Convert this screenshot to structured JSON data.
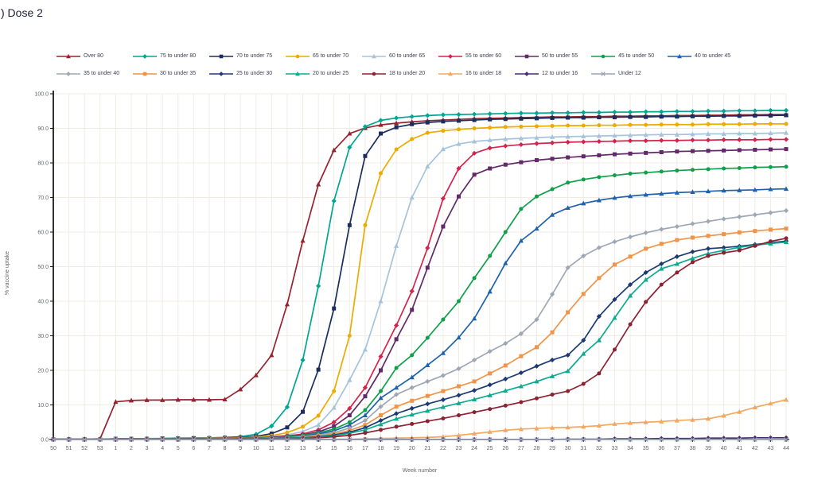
{
  "title": ") Dose 2",
  "chart_data": {
    "type": "line",
    "title": ") Dose 2",
    "xlabel": "Week number",
    "ylabel": "% vaccine uptake",
    "ylim": [
      0,
      100
    ],
    "y_tick_step": 10,
    "y_tick_labels": [
      "0.0",
      "10.0",
      "20.0",
      "30.0",
      "40.0",
      "50.0",
      "60.0",
      "70.0",
      "80.0",
      "90.0",
      "100.0"
    ],
    "grid": true,
    "legend_position": "top",
    "x_labels": [
      "50",
      "51",
      "52",
      "53",
      "1",
      "2",
      "3",
      "4",
      "5",
      "6",
      "7",
      "8",
      "9",
      "10",
      "11",
      "12",
      "13",
      "14",
      "15",
      "16",
      "17",
      "18",
      "19",
      "20",
      "21",
      "22",
      "23",
      "24",
      "25",
      "26",
      "27",
      "28",
      "29",
      "30",
      "31",
      "32",
      "33",
      "34",
      "35",
      "36",
      "37",
      "38",
      "39",
      "40",
      "41",
      "42",
      "43",
      "44"
    ],
    "series": [
      {
        "name": "Over 80",
        "color": "#96232f",
        "marker": "triangle",
        "values": [
          0.1,
          0.1,
          0.1,
          0.2,
          10.9,
          11.3,
          11.4,
          11.4,
          11.5,
          11.5,
          11.5,
          11.6,
          14.5,
          18.6,
          24.4,
          39.1,
          57.5,
          73.8,
          83.7,
          88.5,
          90.1,
          91.0,
          91.5,
          91.9,
          92.2,
          92.4,
          92.6,
          92.8,
          92.9,
          93.0,
          93.1,
          93.2,
          93.3,
          93.3,
          93.4,
          93.4,
          93.5,
          93.5,
          93.6,
          93.6,
          93.7,
          93.7,
          93.8,
          93.8,
          93.9,
          93.9,
          94.0,
          94.0
        ]
      },
      {
        "name": "75 to under 80",
        "color": "#00a692",
        "marker": "diamond",
        "values": [
          0.1,
          0.1,
          0.1,
          0.1,
          0.2,
          0.2,
          0.3,
          0.3,
          0.4,
          0.4,
          0.5,
          0.6,
          0.8,
          1.5,
          3.9,
          9.4,
          23.0,
          44.4,
          69.0,
          84.5,
          90.5,
          92.3,
          93.0,
          93.4,
          93.7,
          93.9,
          94.0,
          94.1,
          94.2,
          94.3,
          94.4,
          94.4,
          94.5,
          94.5,
          94.6,
          94.6,
          94.7,
          94.7,
          94.8,
          94.8,
          94.9,
          94.9,
          95.0,
          95.0,
          95.1,
          95.1,
          95.2,
          95.2
        ]
      },
      {
        "name": "70 to under 75",
        "color": "#1c2e5e",
        "marker": "square",
        "values": [
          0.1,
          0.1,
          0.1,
          0.1,
          0.2,
          0.2,
          0.2,
          0.3,
          0.3,
          0.4,
          0.4,
          0.5,
          0.6,
          0.9,
          1.7,
          3.5,
          8.0,
          20.2,
          37.9,
          62.0,
          82.0,
          88.5,
          90.3,
          91.2,
          91.7,
          92.0,
          92.2,
          92.4,
          92.6,
          92.7,
          92.8,
          92.9,
          93.0,
          93.1,
          93.1,
          93.2,
          93.2,
          93.3,
          93.3,
          93.4,
          93.4,
          93.5,
          93.5,
          93.6,
          93.6,
          93.7,
          93.7,
          93.8
        ]
      },
      {
        "name": "65 to under 70",
        "color": "#edaa00",
        "marker": "circle",
        "values": [
          0.1,
          0.1,
          0.1,
          0.1,
          0.1,
          0.2,
          0.2,
          0.2,
          0.3,
          0.3,
          0.4,
          0.4,
          0.5,
          0.7,
          1.1,
          2.0,
          3.7,
          6.9,
          14.0,
          30.0,
          62.0,
          77.0,
          83.9,
          86.9,
          88.7,
          89.3,
          89.7,
          90.0,
          90.2,
          90.4,
          90.5,
          90.6,
          90.7,
          90.8,
          90.8,
          90.9,
          90.9,
          91.0,
          91.0,
          91.1,
          91.1,
          91.1,
          91.2,
          91.2,
          91.2,
          91.3,
          91.3,
          91.3
        ]
      },
      {
        "name": "60 to under 65",
        "color": "#a5c3dd",
        "marker": "triangle",
        "values": [
          0.1,
          0.1,
          0.1,
          0.1,
          0.1,
          0.1,
          0.2,
          0.2,
          0.2,
          0.3,
          0.3,
          0.3,
          0.4,
          0.5,
          0.8,
          1.3,
          2.3,
          4.2,
          9.2,
          17.2,
          26.0,
          40.0,
          56.0,
          70.0,
          79.0,
          84.0,
          85.5,
          86.2,
          86.6,
          86.9,
          87.1,
          87.3,
          87.5,
          87.6,
          87.7,
          87.8,
          87.9,
          88.0,
          88.1,
          88.2,
          88.2,
          88.3,
          88.4,
          88.4,
          88.5,
          88.5,
          88.6,
          88.7
        ]
      },
      {
        "name": "55 to under 60",
        "color": "#d6234d",
        "marker": "diamond",
        "values": [
          0.1,
          0.1,
          0.1,
          0.1,
          0.1,
          0.1,
          0.1,
          0.2,
          0.2,
          0.2,
          0.3,
          0.3,
          0.4,
          0.5,
          0.7,
          1.0,
          1.6,
          2.8,
          5.0,
          9.0,
          15.0,
          24.0,
          33.0,
          42.9,
          55.4,
          69.7,
          78.4,
          82.8,
          84.3,
          84.9,
          85.3,
          85.6,
          85.8,
          86.0,
          86.1,
          86.2,
          86.3,
          86.4,
          86.4,
          86.5,
          86.5,
          86.6,
          86.6,
          86.7,
          86.7,
          86.7,
          86.8,
          86.8
        ]
      },
      {
        "name": "50 to under 55",
        "color": "#622a68",
        "marker": "square",
        "values": [
          0.1,
          0.1,
          0.1,
          0.1,
          0.1,
          0.1,
          0.1,
          0.1,
          0.2,
          0.2,
          0.2,
          0.3,
          0.3,
          0.4,
          0.6,
          0.9,
          1.3,
          2.2,
          3.8,
          7.0,
          12.5,
          20.0,
          29.0,
          37.5,
          49.7,
          61.6,
          70.3,
          76.6,
          78.4,
          79.5,
          80.2,
          80.8,
          81.2,
          81.6,
          81.9,
          82.2,
          82.5,
          82.7,
          82.9,
          83.1,
          83.3,
          83.4,
          83.5,
          83.6,
          83.7,
          83.8,
          83.9,
          84.0
        ]
      },
      {
        "name": "45 to under 50",
        "color": "#10a04a",
        "marker": "circle",
        "values": [
          0.1,
          0.1,
          0.1,
          0.1,
          0.1,
          0.1,
          0.1,
          0.1,
          0.2,
          0.2,
          0.2,
          0.2,
          0.3,
          0.4,
          0.5,
          0.8,
          1.2,
          1.9,
          3.0,
          5.0,
          8.5,
          14.0,
          20.7,
          24.4,
          29.4,
          34.7,
          40.0,
          46.7,
          53.1,
          60.0,
          66.7,
          70.3,
          72.4,
          74.3,
          75.2,
          75.9,
          76.4,
          76.9,
          77.2,
          77.5,
          77.8,
          78.0,
          78.2,
          78.4,
          78.5,
          78.7,
          78.8,
          78.9
        ]
      },
      {
        "name": "40 to under 45",
        "color": "#1e62ad",
        "marker": "triangle",
        "values": [
          0.1,
          0.1,
          0.1,
          0.1,
          0.1,
          0.1,
          0.1,
          0.1,
          0.1,
          0.2,
          0.2,
          0.2,
          0.2,
          0.3,
          0.4,
          0.6,
          1.0,
          1.6,
          2.5,
          4.2,
          7.0,
          12.0,
          15.0,
          18.0,
          21.5,
          25.0,
          29.5,
          35.0,
          42.8,
          51.0,
          57.5,
          61.0,
          65.0,
          67.0,
          68.3,
          69.2,
          69.9,
          70.4,
          70.8,
          71.1,
          71.4,
          71.6,
          71.8,
          72.0,
          72.1,
          72.2,
          72.4,
          72.5
        ]
      },
      {
        "name": "35 to under 40",
        "color": "#9ea8b4",
        "marker": "diamond",
        "values": [
          0.1,
          0.1,
          0.1,
          0.1,
          0.1,
          0.1,
          0.1,
          0.1,
          0.1,
          0.1,
          0.2,
          0.2,
          0.2,
          0.3,
          0.4,
          0.5,
          0.8,
          1.3,
          2.0,
          3.3,
          5.5,
          9.5,
          13.0,
          15.0,
          16.8,
          18.5,
          20.5,
          23.0,
          25.5,
          27.8,
          30.6,
          34.7,
          42.0,
          49.7,
          53.1,
          55.5,
          57.2,
          58.6,
          59.8,
          60.8,
          61.6,
          62.4,
          63.1,
          63.8,
          64.4,
          65.0,
          65.6,
          66.2
        ]
      },
      {
        "name": "30 to under 35",
        "color": "#ef9448",
        "marker": "square",
        "values": [
          0.1,
          0.1,
          0.1,
          0.1,
          0.1,
          0.1,
          0.1,
          0.1,
          0.1,
          0.1,
          0.1,
          0.2,
          0.2,
          0.2,
          0.3,
          0.4,
          0.6,
          1.0,
          1.6,
          2.6,
          4.2,
          7.0,
          9.5,
          11.2,
          12.6,
          14.0,
          15.4,
          16.8,
          19.1,
          21.4,
          24.1,
          26.7,
          31.0,
          36.8,
          42.1,
          46.7,
          50.6,
          52.9,
          55.2,
          56.6,
          57.7,
          58.4,
          58.9,
          59.4,
          59.9,
          60.3,
          60.7,
          61.0
        ]
      },
      {
        "name": "25 to under 30",
        "color": "#1e3a74",
        "marker": "diamond",
        "values": [
          0.1,
          0.1,
          0.1,
          0.1,
          0.1,
          0.1,
          0.1,
          0.1,
          0.1,
          0.1,
          0.1,
          0.1,
          0.2,
          0.2,
          0.3,
          0.4,
          0.5,
          0.8,
          1.3,
          2.1,
          3.4,
          5.5,
          7.5,
          9.0,
          10.3,
          11.5,
          12.8,
          14.2,
          15.8,
          17.5,
          19.3,
          21.2,
          23.0,
          24.4,
          28.7,
          35.6,
          40.5,
          44.8,
          48.3,
          50.8,
          52.9,
          54.3,
          55.2,
          55.5,
          55.9,
          56.4,
          56.9,
          57.4
        ]
      },
      {
        "name": "20 to under 25",
        "color": "#0cab8f",
        "marker": "triangle",
        "values": [
          0.0,
          0.0,
          0.0,
          0.0,
          0.1,
          0.1,
          0.1,
          0.1,
          0.1,
          0.1,
          0.1,
          0.1,
          0.1,
          0.2,
          0.2,
          0.3,
          0.4,
          0.7,
          1.1,
          1.8,
          2.8,
          4.4,
          6.0,
          7.2,
          8.3,
          9.4,
          10.5,
          11.6,
          12.8,
          14.1,
          15.4,
          16.8,
          18.3,
          19.8,
          24.8,
          28.7,
          35.2,
          41.6,
          46.2,
          49.4,
          50.8,
          52.4,
          53.8,
          54.7,
          55.6,
          56.2,
          56.7,
          57.1
        ]
      },
      {
        "name": "18 to under 20",
        "color": "#8d2232",
        "marker": "circle",
        "values": [
          0.0,
          0.0,
          0.0,
          0.0,
          0.0,
          0.1,
          0.1,
          0.1,
          0.1,
          0.1,
          0.1,
          0.1,
          0.1,
          0.1,
          0.2,
          0.2,
          0.3,
          0.5,
          0.8,
          1.2,
          1.9,
          2.8,
          3.7,
          4.5,
          5.3,
          6.1,
          7.0,
          7.9,
          8.8,
          9.8,
          10.8,
          11.9,
          13.0,
          14.0,
          16.1,
          19.1,
          26.0,
          33.3,
          39.8,
          44.8,
          48.3,
          51.3,
          53.1,
          54.0,
          54.7,
          56.0,
          57.3,
          58.2
        ]
      },
      {
        "name": "16 to under 18",
        "color": "#f3a860",
        "marker": "triangle",
        "values": [
          0.0,
          0.0,
          0.0,
          0.0,
          0.0,
          0.0,
          0.0,
          0.0,
          0.0,
          0.0,
          0.0,
          0.0,
          0.0,
          0.0,
          0.1,
          0.1,
          0.1,
          0.1,
          0.1,
          0.1,
          0.2,
          0.3,
          0.4,
          0.5,
          0.6,
          0.8,
          1.2,
          1.7,
          2.2,
          2.7,
          3.0,
          3.2,
          3.4,
          3.5,
          3.7,
          4.0,
          4.5,
          4.8,
          5.0,
          5.2,
          5.5,
          5.7,
          6.0,
          6.9,
          8.0,
          9.3,
          10.4,
          11.5
        ]
      },
      {
        "name": "12 to under 16",
        "color": "#4b2a72",
        "marker": "diamond",
        "values": [
          0.0,
          0.0,
          0.0,
          0.0,
          0.0,
          0.0,
          0.0,
          0.0,
          0.0,
          0.0,
          0.0,
          0.0,
          0.0,
          0.0,
          0.0,
          0.0,
          0.0,
          0.0,
          0.0,
          0.0,
          0.0,
          0.0,
          0.0,
          0.0,
          0.0,
          0.0,
          0.0,
          0.0,
          0.0,
          0.0,
          0.0,
          0.0,
          0.0,
          0.1,
          0.1,
          0.1,
          0.2,
          0.2,
          0.2,
          0.3,
          0.3,
          0.3,
          0.4,
          0.4,
          0.4,
          0.5,
          0.5,
          0.5
        ]
      },
      {
        "name": "Under 12",
        "color": "#98a3b3",
        "marker": "x",
        "values": [
          0.0,
          0.0,
          0.0,
          0.0,
          0.0,
          0.0,
          0.0,
          0.0,
          0.0,
          0.0,
          0.0,
          0.0,
          0.0,
          0.0,
          0.0,
          0.0,
          0.0,
          0.0,
          0.0,
          0.0,
          0.0,
          0.0,
          0.0,
          0.0,
          0.0,
          0.0,
          0.0,
          0.0,
          0.0,
          0.0,
          0.0,
          0.0,
          0.0,
          0.0,
          0.0,
          0.0,
          0.0,
          0.0,
          0.0,
          0.0,
          0.0,
          0.0,
          0.0,
          0.0,
          0.0,
          0.0,
          0.0,
          0.0
        ]
      }
    ]
  }
}
